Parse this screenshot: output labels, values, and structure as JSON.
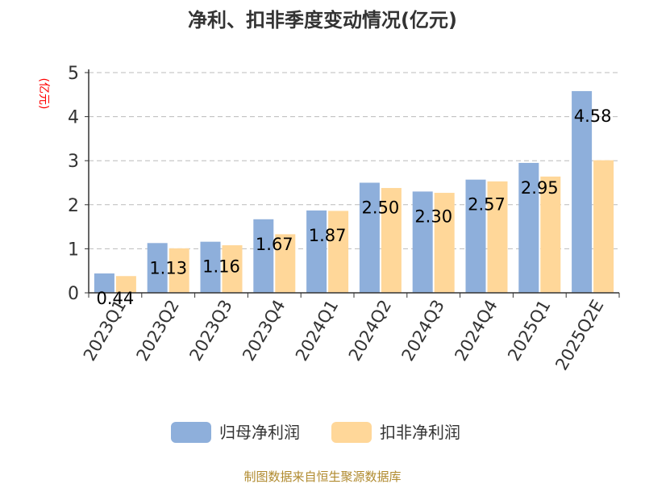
{
  "chart_data": {
    "type": "bar",
    "title": "净利、扣非季度变动情况(亿元)",
    "ylabel": "(亿元)",
    "xlabel": "",
    "categories": [
      "2023Q1",
      "2023Q2",
      "2023Q3",
      "2023Q4",
      "2024Q1",
      "2024Q2",
      "2024Q3",
      "2024Q4",
      "2025Q1",
      "2025Q2E"
    ],
    "series": [
      {
        "name": "归母净利润",
        "values": [
          0.44,
          1.13,
          1.16,
          1.67,
          1.87,
          2.5,
          2.3,
          2.57,
          2.95,
          4.58
        ],
        "color": "#8eafdb"
      },
      {
        "name": "扣非净利润",
        "values": [
          0.38,
          1.01,
          1.08,
          1.33,
          1.86,
          2.38,
          2.27,
          2.53,
          2.64,
          3.01
        ],
        "color": "#ffd799"
      }
    ],
    "data_labels": [
      "0.44",
      "1.13",
      "1.16",
      "1.67",
      "1.87",
      "2.50",
      "2.30",
      "2.57",
      "2.95",
      "4.58"
    ],
    "yticks": [
      "0",
      "1",
      "2",
      "3",
      "4",
      "5"
    ],
    "ylim": [
      0,
      5
    ],
    "grid": true,
    "legend_position": "bottom"
  },
  "source_note": "制图数据来自恒生聚源数据库",
  "colors": {
    "title": "#333333",
    "ylabel": "#ff0000",
    "axis": "#333333",
    "grid": "#bbbbbb",
    "source": "#b08a2e"
  }
}
